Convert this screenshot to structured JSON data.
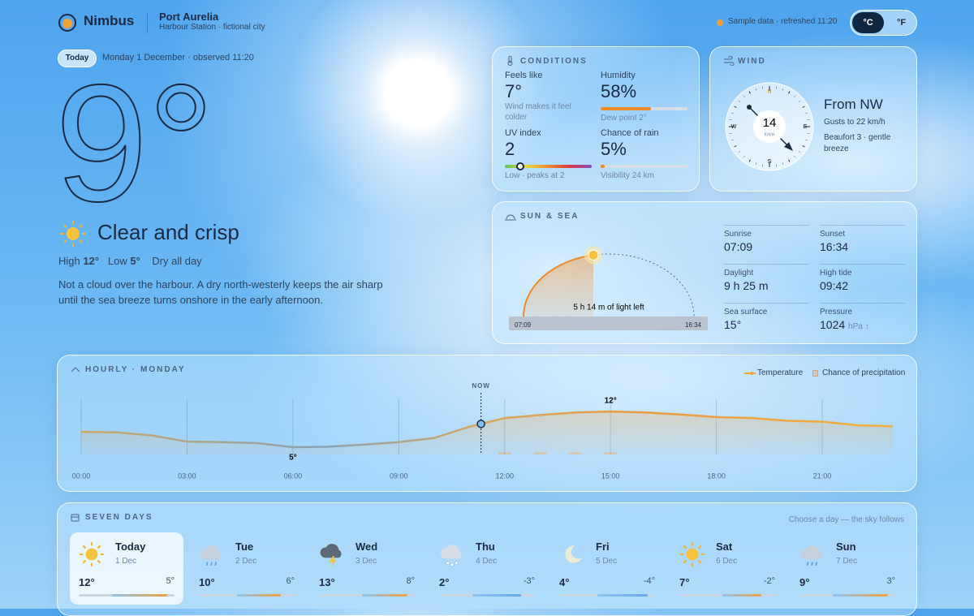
{
  "header": {
    "brand": "Nimbus",
    "location": "Port Aurelia",
    "station": "Harbour Station · fictional city",
    "status": "Sample data · refreshed 11:20",
    "units": [
      "°C",
      "°F"
    ]
  },
  "current": {
    "badge": "Today",
    "date": "Monday 1 December · observed 11:20",
    "temperature": "9°",
    "summary": "Clear and crisp",
    "high_label": "High",
    "high": "12°",
    "low_label": "Low",
    "low": "5°",
    "precip_note": "Dry all day",
    "description": "Not a cloud over the harbour. A dry north-westerly keeps the air sharp until the sea breeze turns onshore in the early afternoon."
  },
  "conditions": {
    "title": "CONDITIONS",
    "feels_like": {
      "label": "Feels like",
      "value": "7°",
      "note": "Wind makes it feel colder"
    },
    "humidity": {
      "label": "Humidity",
      "reading": {
        "value": 58,
        "label": "58%"
      },
      "scale": [
        0,
        100
      ],
      "note": "Dew point 2°"
    },
    "uv": {
      "label": "UV index",
      "reading": {
        "value": 2,
        "label": "2"
      },
      "scale": [
        0,
        11
      ],
      "note": "Low · peaks at 2"
    },
    "rain": {
      "label": "Chance of rain",
      "reading": {
        "value": 5,
        "label": "5%"
      },
      "scale": [
        0,
        100
      ],
      "note": "Visibility 24 km"
    }
  },
  "wind": {
    "title": "WIND",
    "compass": [
      "N",
      "E",
      "S",
      "W"
    ],
    "speed": "14",
    "unit": "KM/H",
    "direction": "From NW",
    "gusts": "Gusts to 22 km/h",
    "beaufort": "Beaufort 3 · gentle breeze"
  },
  "sun_sea": {
    "title": "SUN & SEA",
    "light_left": "5 h 14 m of light left",
    "items": [
      {
        "label": "Sunrise",
        "value": "07:09"
      },
      {
        "label": "Sunset",
        "value": "16:34"
      },
      {
        "label": "Daylight",
        "value": "9 h 25 m"
      },
      {
        "label": "High tide",
        "value": "09:42"
      },
      {
        "label": "Sea surface",
        "value": "15°"
      },
      {
        "label": "Pressure",
        "value": "1024",
        "unit": "hPa ↑"
      }
    ]
  },
  "hourly": {
    "title": "HOURLY · MONDAY",
    "legend": [
      "Temperature",
      "Chance of precipitation"
    ],
    "hours": [
      0,
      1,
      2,
      3,
      4,
      5,
      6,
      7,
      8,
      9,
      10,
      11,
      12,
      13,
      14,
      15,
      16,
      17,
      18,
      19,
      20,
      21,
      22,
      23
    ],
    "xlim": [
      0,
      23
    ],
    "temperature": [
      8,
      7.9,
      7.3,
      6.1,
      6,
      5.8,
      5,
      5.1,
      5.5,
      6,
      6.8,
      9,
      10.7,
      11.3,
      11.8,
      12,
      11.8,
      11.4,
      10.9,
      10.7,
      10.2,
      10,
      9.3,
      9.1
    ],
    "precipitation": [
      0,
      0,
      0,
      0,
      0,
      0,
      0,
      0,
      0,
      0,
      0,
      0,
      5,
      5,
      5,
      5,
      0,
      0,
      0,
      0,
      0,
      0,
      0,
      0
    ],
    "xticks": [
      {
        "value": 0,
        "label": "00:00"
      },
      {
        "value": 3,
        "label": "03:00"
      },
      {
        "value": 6,
        "label": "06:00"
      },
      {
        "value": 9,
        "label": "09:00"
      },
      {
        "value": 12,
        "label": "12:00"
      },
      {
        "value": 15,
        "label": "15:00"
      },
      {
        "value": 18,
        "label": "18:00"
      },
      {
        "value": 21,
        "label": "21:00"
      }
    ],
    "now": {
      "x": 11.33,
      "label": "NOW"
    },
    "annotations": [
      {
        "x": 6,
        "value": 5,
        "label": "5°"
      },
      {
        "x": 15,
        "value": 12,
        "label": "12°"
      }
    ]
  },
  "week": {
    "title": "SEVEN DAYS",
    "hint": "Choose a day — the sky follows",
    "days": [
      {
        "name": "Today",
        "date": "1 Dec",
        "high": "12°",
        "low": "5°",
        "icon": "sun"
      },
      {
        "name": "Tue",
        "date": "2 Dec",
        "high": "10°",
        "low": "6°",
        "icon": "rain"
      },
      {
        "name": "Wed",
        "date": "3 Dec",
        "high": "13°",
        "low": "8°",
        "icon": "storm"
      },
      {
        "name": "Thu",
        "date": "4 Dec",
        "high": "2°",
        "low": "-3°",
        "icon": "snow"
      },
      {
        "name": "Fri",
        "date": "5 Dec",
        "high": "4°",
        "low": "-4°",
        "icon": "moon"
      },
      {
        "name": "Sat",
        "date": "6 Dec",
        "high": "7°",
        "low": "-2°",
        "icon": "sun"
      },
      {
        "name": "Sun",
        "date": "7 Dec",
        "high": "9°",
        "low": "3°",
        "icon": "rain"
      }
    ]
  }
}
